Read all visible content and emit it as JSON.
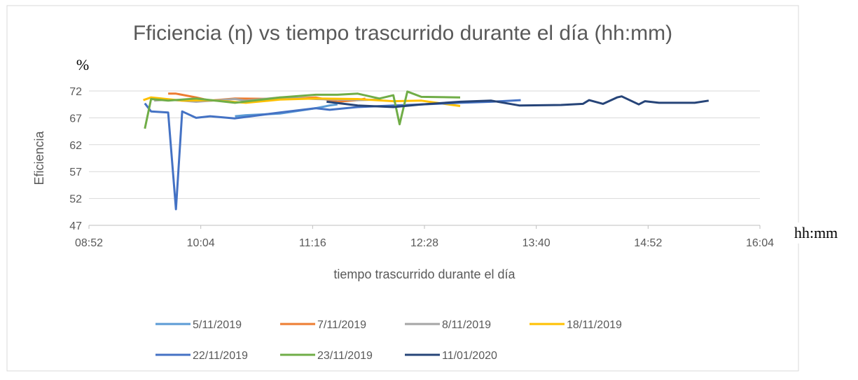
{
  "chart_data": {
    "type": "line",
    "title": "Fficiencia (η) vs tiempo trascurrido durante el día (hh:mm)",
    "y_unit": "%",
    "x_unit": "hh:mm",
    "xlabel": "tiempo trascurrido durante el día",
    "ylabel": "Eficiencia",
    "xlim": [
      532,
      964
    ],
    "ylim": [
      47,
      72
    ],
    "xticks": [
      {
        "value": 532,
        "label": "08:52"
      },
      {
        "value": 604,
        "label": "10:04"
      },
      {
        "value": 676,
        "label": "11:16"
      },
      {
        "value": 748,
        "label": "12:28"
      },
      {
        "value": 820,
        "label": "13:40"
      },
      {
        "value": 892,
        "label": "14:52"
      },
      {
        "value": 964,
        "label": "16:04"
      }
    ],
    "yticks": [
      47,
      52,
      57,
      62,
      67,
      72
    ],
    "grid": true,
    "series": [
      {
        "name": "5/11/2019",
        "color": "#5b9bd5",
        "x": [
          626,
          633,
          655,
          678,
          687,
          692
        ],
        "values": [
          67.3,
          67.5,
          67.8,
          68.8,
          69.3,
          69.5
        ]
      },
      {
        "name": "7/11/2019",
        "color": "#ed7d31",
        "x": [
          583,
          588,
          601,
          610,
          626,
          655,
          678,
          692,
          705,
          710
        ],
        "values": [
          71.5,
          71.5,
          70.8,
          70.2,
          70.6,
          70.5,
          70.8,
          70.0,
          70.3,
          70.6
        ]
      },
      {
        "name": "8/11/2019",
        "color": "#a5a5a5",
        "x": [
          574,
          583,
          601,
          626,
          633,
          655,
          678,
          705,
          719
        ],
        "values": [
          70.2,
          70.4,
          70.0,
          70.5,
          70.2,
          70.8,
          70.5,
          70.3,
          70.4
        ]
      },
      {
        "name": "18/11/2019",
        "color": "#ffc000",
        "x": [
          567,
          572,
          592,
          610,
          633,
          655,
          678,
          705,
          728,
          746,
          771
        ],
        "values": [
          70.3,
          70.8,
          70.2,
          70.3,
          69.8,
          70.4,
          70.6,
          70.5,
          70.1,
          70.2,
          69.2
        ]
      },
      {
        "name": "22/11/2019",
        "color": "#4472c4",
        "x": [
          568,
          572,
          583,
          588,
          592,
          601,
          610,
          626,
          655,
          678,
          687,
          705,
          728,
          746,
          771,
          791,
          810
        ],
        "values": [
          69.7,
          68.2,
          68.0,
          50.0,
          68.2,
          67.0,
          67.3,
          66.9,
          68.0,
          68.8,
          68.5,
          69.0,
          69.3,
          69.5,
          69.8,
          70.0,
          70.3
        ]
      },
      {
        "name": "23/11/2019",
        "color": "#70ad47",
        "x": [
          568,
          572,
          583,
          601,
          626,
          655,
          678,
          692,
          705,
          719,
          728,
          732,
          737,
          746,
          771
        ],
        "values": [
          65.0,
          70.5,
          70.2,
          70.6,
          69.8,
          70.8,
          71.3,
          71.3,
          71.5,
          70.6,
          71.2,
          65.8,
          71.9,
          70.9,
          70.8
        ]
      },
      {
        "name": "11/01/2020",
        "color": "#264478",
        "x": [
          685,
          705,
          728,
          746,
          771,
          791,
          809,
          836,
          850,
          854,
          863,
          872,
          875,
          886,
          890,
          899,
          922,
          931
        ],
        "values": [
          70.0,
          69.3,
          69.0,
          69.5,
          70.0,
          70.2,
          69.3,
          69.4,
          69.6,
          70.3,
          69.6,
          70.8,
          71.0,
          69.5,
          70.1,
          69.8,
          69.8,
          70.2
        ]
      }
    ]
  }
}
